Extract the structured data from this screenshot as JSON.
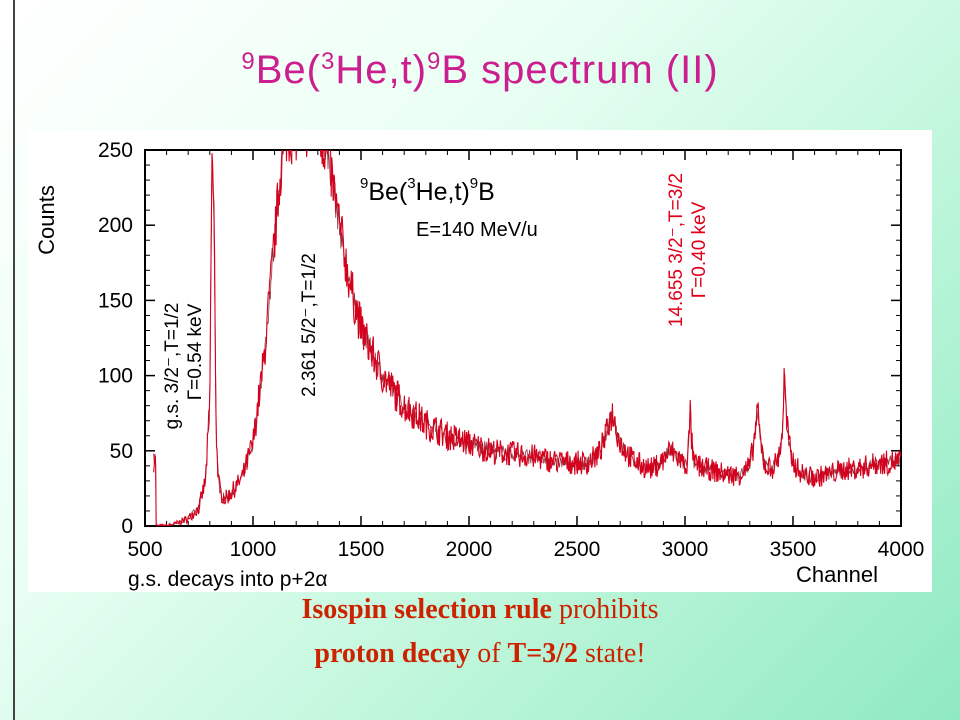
{
  "title": {
    "pre_sup": "9",
    "el1": "Be(",
    "sup2": "3",
    "el2": "He,t)",
    "sup3": "9",
    "el3": "B spectrum (II)"
  },
  "chart_data": {
    "type": "line",
    "xlabel": "Channel",
    "ylabel": "Counts",
    "xlim": [
      500,
      4000
    ],
    "ylim": [
      0,
      250
    ],
    "x_ticks": [
      500,
      1000,
      1500,
      2000,
      2500,
      3000,
      3500,
      4000
    ],
    "y_ticks": [
      0,
      50,
      100,
      150,
      200,
      250
    ],
    "grid": false,
    "series_color": "#d4001c",
    "reaction_label": {
      "a": "9",
      "b": "Be(",
      "c": "3",
      "d": "He,t)",
      "e": "9",
      "f": "B"
    },
    "energy_label": "E=140 MeV/u",
    "annotations": {
      "gs_line1": "g.s. 3/2⁻,T=1/2",
      "gs_line2": "Γ=0.54 keV",
      "s2_line1": "2.361 5/2⁻,T=1/2",
      "s3_line1": "14.655 3/2⁻,T=3/2",
      "s3_line2": "Γ=0.40 keV",
      "decay_note": "g.s. decays into p+2α"
    },
    "points": {
      "x": [
        550,
        600,
        650,
        700,
        720,
        750,
        780,
        800,
        810,
        820,
        830,
        840,
        850,
        870,
        900,
        950,
        1000,
        1050,
        1100,
        1130,
        1150,
        1170,
        1200,
        1250,
        1300,
        1350,
        1400,
        1450,
        1500,
        1550,
        1600,
        1700,
        1800,
        1900,
        2000,
        2100,
        2200,
        2300,
        2400,
        2500,
        2550,
        2600,
        2630,
        2650,
        2665,
        2680,
        2700,
        2750,
        2800,
        2850,
        2900,
        2930,
        2950,
        2980,
        3000,
        3010,
        3020,
        3025,
        3030,
        3040,
        3060,
        3100,
        3150,
        3200,
        3250,
        3300,
        3320,
        3335,
        3350,
        3370,
        3400,
        3430,
        3450,
        3460,
        3470,
        3490,
        3520,
        3550,
        3600,
        3650,
        3700,
        3750,
        3800,
        3850,
        3900,
        3950,
        4000
      ],
      "y": [
        0,
        0,
        2,
        5,
        8,
        12,
        30,
        80,
        250,
        200,
        60,
        30,
        22,
        18,
        22,
        32,
        55,
        110,
        190,
        240,
        260,
        260,
        262,
        264,
        265,
        245,
        200,
        160,
        132,
        115,
        100,
        80,
        68,
        60,
        55,
        50,
        48,
        46,
        43,
        42,
        42,
        48,
        58,
        70,
        75,
        66,
        55,
        45,
        40,
        38,
        44,
        50,
        48,
        44,
        40,
        42,
        60,
        80,
        58,
        42,
        40,
        38,
        36,
        34,
        34,
        40,
        56,
        78,
        55,
        40,
        38,
        44,
        60,
        100,
        70,
        46,
        38,
        34,
        32,
        34,
        36,
        38,
        38,
        40,
        42,
        42,
        44
      ]
    }
  },
  "caption": {
    "l1_a": "Isospin selection rule",
    "l1_b": " prohibits",
    "l2_a": "proton decay",
    "l2_b": " of ",
    "l2_c": "T=3/2",
    "l2_d": " state!"
  }
}
